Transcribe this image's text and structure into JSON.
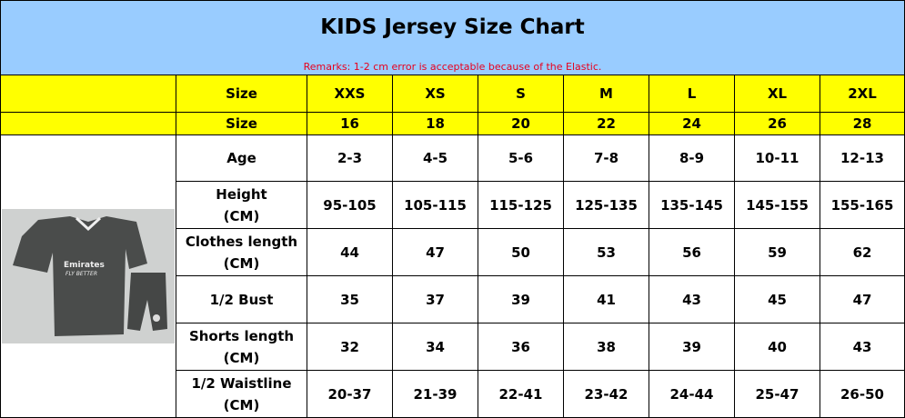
{
  "header": {
    "title": "KIDS Jersey Size Chart",
    "remarks": "Remarks: 1-2 cm error is acceptable because of the Elastic."
  },
  "table": {
    "rows": [
      [
        "Size",
        "XXS",
        "XS",
        "S",
        "M",
        "L",
        "XL",
        "2XL"
      ],
      [
        "Size",
        "16",
        "18",
        "20",
        "22",
        "24",
        "26",
        "28"
      ],
      [
        "Age",
        "2-3",
        "4-5",
        "5-6",
        "7-8",
        "8-9",
        "10-11",
        "12-13"
      ],
      [
        "Height\n(CM)",
        "95-105",
        "105-115",
        "115-125",
        "125-135",
        "135-145",
        "145-155",
        "155-165"
      ],
      [
        "Clothes length\n(CM)",
        "44",
        "47",
        "50",
        "53",
        "56",
        "59",
        "62"
      ],
      [
        "1/2 Bust",
        "35",
        "37",
        "39",
        "41",
        "43",
        "45",
        "47"
      ],
      [
        "Shorts length\n(CM)",
        "32",
        "34",
        "36",
        "38",
        "39",
        "40",
        "43"
      ],
      [
        "1/2 Waistline\n(CM)",
        "20-37",
        "21-39",
        "22-41",
        "23-42",
        "24-44",
        "25-47",
        "26-50"
      ]
    ]
  }
}
